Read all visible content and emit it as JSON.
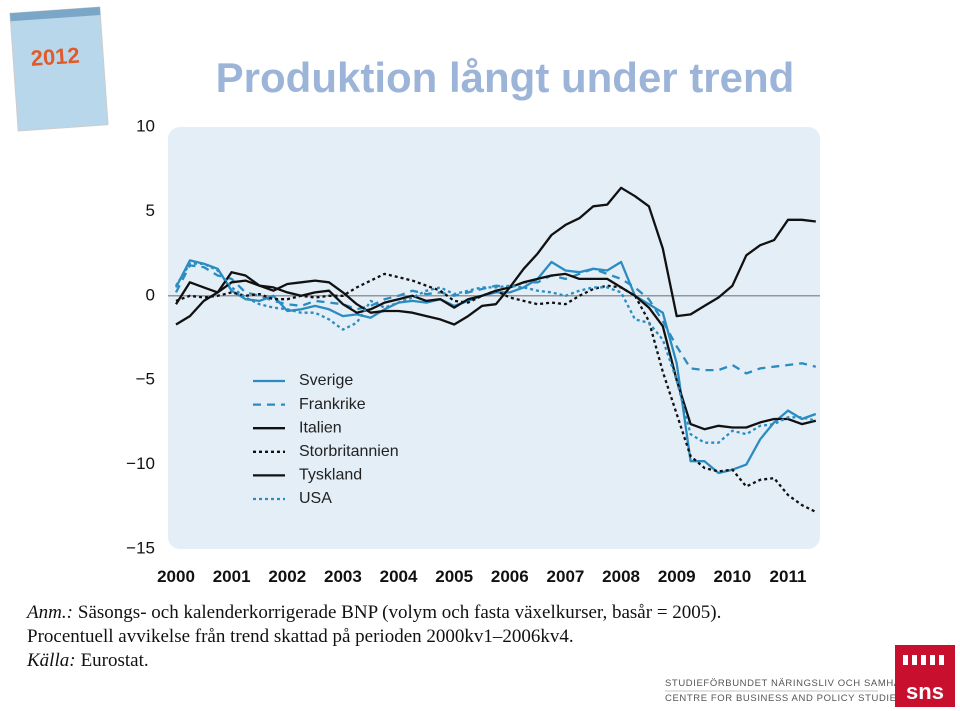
{
  "chart_data": {
    "type": "line",
    "title": "Produktion långt under trend",
    "categories": [
      "2000",
      null,
      null,
      null,
      "2001",
      null,
      null,
      null,
      "2002",
      null,
      null,
      null,
      "2003",
      null,
      null,
      null,
      "2004",
      null,
      null,
      null,
      "2005",
      null,
      null,
      null,
      "2006",
      null,
      null,
      null,
      "2007",
      null,
      null,
      null,
      "2008",
      null,
      null,
      null,
      "2009",
      null,
      null,
      null,
      "2010",
      null,
      null,
      null,
      "2011",
      null,
      null
    ],
    "ylim": [
      -15,
      10
    ],
    "yticks": [
      {
        "value": -15,
        "label": "−15"
      },
      {
        "value": -10,
        "label": "−10"
      },
      {
        "value": -5,
        "label": "−5"
      },
      0,
      5,
      10
    ],
    "zero_line": true,
    "legend": "lower-left",
    "series": [
      {
        "name": "Sverige",
        "color": "#2a8cc0",
        "style": "solid",
        "values": [
          0.5,
          2.1,
          1.9,
          1.6,
          0.3,
          -0.2,
          -0.3,
          0.0,
          -0.9,
          -0.8,
          -0.6,
          -0.8,
          -1.2,
          -1.1,
          -1.3,
          -0.8,
          -0.4,
          -0.3,
          -0.4,
          -0.2,
          -0.6,
          -0.3,
          0.0,
          0.2,
          0.2,
          0.5,
          1.0,
          2.0,
          1.5,
          1.4,
          1.6,
          1.5,
          2.0,
          0.0,
          -0.5,
          -1.0,
          -4.0,
          -9.8,
          -9.8,
          -10.5,
          -10.3,
          -10.0,
          -8.5,
          -7.5,
          -6.8,
          -7.3,
          -7.0
        ]
      },
      {
        "name": "Frankrike",
        "color": "#2a8cc0",
        "style": "dashed",
        "values": [
          0.2,
          1.8,
          1.7,
          1.2,
          1.0,
          0.2,
          0.0,
          -0.3,
          -0.5,
          -0.6,
          -0.3,
          -0.4,
          -0.5,
          -0.8,
          -0.6,
          -0.2,
          0.0,
          0.3,
          0.1,
          0.2,
          0.0,
          0.2,
          0.4,
          0.6,
          0.5,
          0.8,
          0.8,
          1.2,
          1.0,
          1.3,
          1.6,
          1.3,
          1.0,
          0.5,
          -0.2,
          -1.5,
          -3.0,
          -4.3,
          -4.4,
          -4.4,
          -4.1,
          -4.6,
          -4.3,
          -4.2,
          -4.1,
          -4.0,
          -4.2
        ]
      },
      {
        "name": "Italien",
        "color": "#111111",
        "style": "solid",
        "values": [
          -0.5,
          0.8,
          0.5,
          0.2,
          0.8,
          0.9,
          0.6,
          0.5,
          0.2,
          0.0,
          0.2,
          0.3,
          -0.5,
          -1.0,
          -0.8,
          -0.4,
          -0.2,
          0.0,
          -0.3,
          -0.2,
          -0.7,
          -0.2,
          0.0,
          0.3,
          0.5,
          0.8,
          1.0,
          1.2,
          1.3,
          1.0,
          1.0,
          1.0,
          0.5,
          0.0,
          -0.7,
          -1.8,
          -5.0,
          -7.6,
          -7.9,
          -7.7,
          -7.8,
          -7.8,
          -7.5,
          -7.3,
          -7.3,
          -7.6,
          -7.4
        ]
      },
      {
        "name": "Storbritannien",
        "color": "#111111",
        "style": "dotted",
        "values": [
          -0.3,
          0.0,
          -0.1,
          0.0,
          0.2,
          0.0,
          0.1,
          -0.2,
          -0.2,
          0.0,
          -0.1,
          0.0,
          0.0,
          0.5,
          0.9,
          1.3,
          1.1,
          0.9,
          0.6,
          0.3,
          -0.3,
          -0.4,
          0.0,
          0.3,
          -0.1,
          -0.3,
          -0.5,
          -0.4,
          -0.5,
          0.0,
          0.4,
          0.6,
          0.5,
          0.0,
          -1.5,
          -4.5,
          -7.0,
          -9.5,
          -10.2,
          -10.4,
          -10.3,
          -11.3,
          -10.9,
          -10.8,
          -11.8,
          -12.4,
          -12.8
        ]
      },
      {
        "name": "Tyskland",
        "color": "#111111",
        "style": "solid",
        "values": [
          -1.7,
          -1.2,
          -0.3,
          0.2,
          1.4,
          1.2,
          0.6,
          0.3,
          0.7,
          0.8,
          0.9,
          0.8,
          0.2,
          -0.5,
          -1.0,
          -0.9,
          -0.9,
          -1.0,
          -1.2,
          -1.4,
          -1.7,
          -1.2,
          -0.6,
          -0.5,
          0.5,
          1.6,
          2.5,
          3.6,
          4.2,
          4.6,
          5.3,
          5.4,
          6.4,
          5.9,
          5.3,
          2.8,
          -1.2,
          -1.1,
          -0.6,
          -0.1,
          0.6,
          2.4,
          3.0,
          3.3,
          4.5,
          4.5,
          4.4
        ]
      },
      {
        "name": "USA",
        "color": "#2a8cc0",
        "style": "dotted",
        "values": [
          0.6,
          1.9,
          1.9,
          1.5,
          0.5,
          -0.1,
          -0.5,
          -0.7,
          -0.8,
          -1.0,
          -1.0,
          -1.4,
          -2.0,
          -1.6,
          -0.3,
          -0.7,
          -0.4,
          -0.1,
          0.3,
          0.5,
          0.1,
          0.3,
          0.5,
          0.5,
          0.6,
          0.5,
          0.3,
          0.2,
          0.0,
          0.3,
          0.5,
          0.5,
          0.2,
          -1.4,
          -1.6,
          -2.6,
          -5.0,
          -8.2,
          -8.7,
          -8.7,
          -8.0,
          -8.2,
          -7.7,
          -7.6,
          -7.2,
          -7.2,
          -7.4
        ]
      }
    ]
  },
  "notes": {
    "note_label": "Anm.:",
    "note_line1": "Säsongs- och kalenderkorrigerade BNP (volym och fasta växelkurser, basår = 2005).",
    "note_line2": "Procentuell avvikelse från trend skattad på perioden 2000kv1–2006kv4.",
    "source_label": "Källa:",
    "source": "Eurostat."
  },
  "cover": {
    "year": "2012"
  },
  "logo": {
    "line1": "STUDIEFÖRBUNDET NÄRINGSLIV OCH SAMHÄLLE",
    "line2": "CENTRE FOR BUSINESS AND POLICY STUDIES",
    "mark": "sns"
  }
}
